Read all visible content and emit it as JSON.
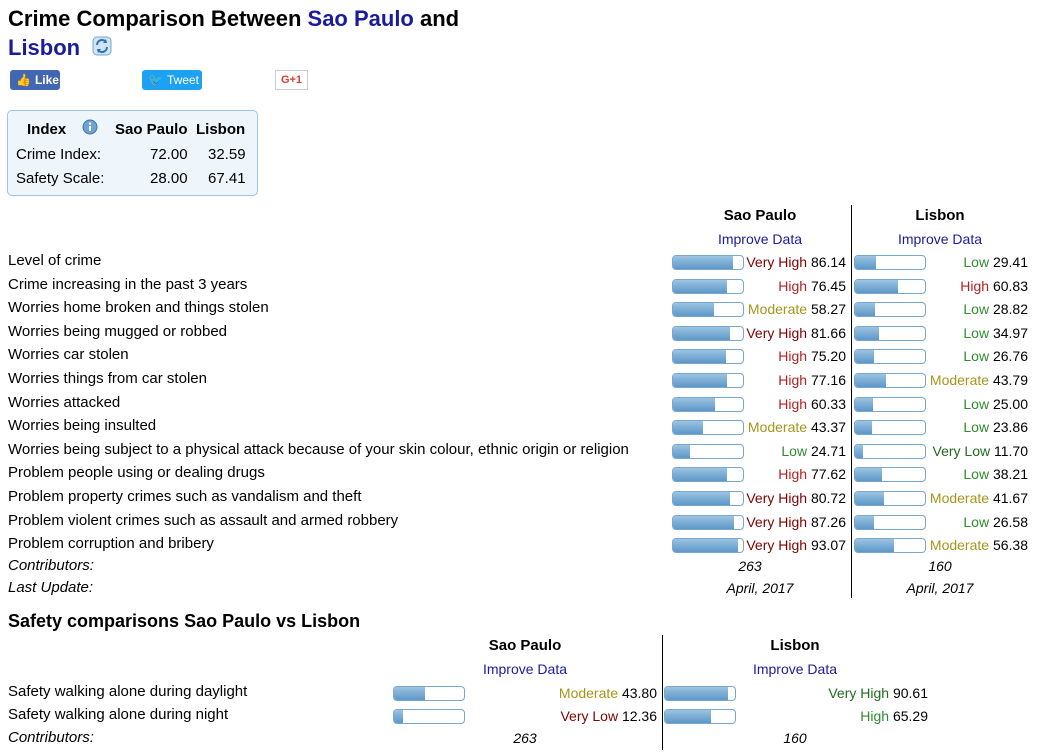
{
  "title": {
    "prefix": "Crime Comparison Between ",
    "city1": "Sao Paulo",
    "mid": " and",
    "city2": "Lisbon"
  },
  "social": {
    "like": "Like",
    "tweet": "Tweet",
    "gplus": "G+1"
  },
  "index_table": {
    "headers": [
      "Index",
      "Sao Paulo",
      "Lisbon"
    ],
    "rows": [
      {
        "label": "Crime Index:",
        "v1": "72.00",
        "v2": "32.59"
      },
      {
        "label": "Safety Scale:",
        "v1": "28.00",
        "v2": "67.41"
      }
    ]
  },
  "crime": {
    "city1": "Sao Paulo",
    "city2": "Lisbon",
    "improve": "Improve Data",
    "rows": [
      {
        "label": "Level of crime",
        "a_level": "Very High",
        "a_val": 86.14,
        "a_cls": "vhigh",
        "b_level": "Low",
        "b_val": 29.41,
        "b_cls": "low"
      },
      {
        "label": "Crime increasing in the past 3 years",
        "a_level": "High",
        "a_val": 76.45,
        "a_cls": "high",
        "b_level": "High",
        "b_val": 60.83,
        "b_cls": "high"
      },
      {
        "label": "Worries home broken and things stolen",
        "a_level": "Moderate",
        "a_val": 58.27,
        "a_cls": "mod",
        "b_level": "Low",
        "b_val": 28.82,
        "b_cls": "low"
      },
      {
        "label": "Worries being mugged or robbed",
        "a_level": "Very High",
        "a_val": 81.66,
        "a_cls": "vhigh",
        "b_level": "Low",
        "b_val": 34.97,
        "b_cls": "low"
      },
      {
        "label": "Worries car stolen",
        "a_level": "High",
        "a_val": 75.2,
        "a_cls": "high",
        "b_level": "Low",
        "b_val": 26.76,
        "b_cls": "low"
      },
      {
        "label": "Worries things from car stolen",
        "a_level": "High",
        "a_val": 77.16,
        "a_cls": "high",
        "b_level": "Moderate",
        "b_val": 43.79,
        "b_cls": "mod"
      },
      {
        "label": "Worries attacked",
        "a_level": "High",
        "a_val": 60.33,
        "a_cls": "high",
        "b_level": "Low",
        "b_val": 25.0,
        "b_cls": "low"
      },
      {
        "label": "Worries being insulted",
        "a_level": "Moderate",
        "a_val": 43.37,
        "a_cls": "mod",
        "b_level": "Low",
        "b_val": 23.86,
        "b_cls": "low"
      },
      {
        "label": "Worries being subject to a physical attack because of your skin colour, ethnic origin or religion",
        "a_level": "Low",
        "a_val": 24.71,
        "a_cls": "low",
        "b_level": "Very Low",
        "b_val": 11.7,
        "b_cls": "vlow"
      },
      {
        "label": "Problem people using or dealing drugs",
        "a_level": "High",
        "a_val": 77.62,
        "a_cls": "high",
        "b_level": "Low",
        "b_val": 38.21,
        "b_cls": "low"
      },
      {
        "label": "Problem property crimes such as vandalism and theft",
        "a_level": "Very High",
        "a_val": 80.72,
        "a_cls": "vhigh",
        "b_level": "Moderate",
        "b_val": 41.67,
        "b_cls": "mod"
      },
      {
        "label": "Problem violent crimes such as assault and armed robbery",
        "a_level": "Very High",
        "a_val": 87.26,
        "a_cls": "vhigh",
        "b_level": "Low",
        "b_val": 26.58,
        "b_cls": "low"
      },
      {
        "label": "Problem corruption and bribery",
        "a_level": "Very High",
        "a_val": 93.07,
        "a_cls": "vhigh",
        "b_level": "Moderate",
        "b_val": 56.38,
        "b_cls": "mod"
      }
    ],
    "contributors_label": "Contributors:",
    "contributors_a": "263",
    "contributors_b": "160",
    "update_label": "Last Update:",
    "update_a": "April, 2017",
    "update_b": "April, 2017"
  },
  "safety": {
    "title": "Safety comparisons Sao Paulo vs Lisbon",
    "city1": "Sao Paulo",
    "city2": "Lisbon",
    "improve": "Improve Data",
    "rows": [
      {
        "label": "Safety walking alone during daylight",
        "a_level": "Moderate",
        "a_val": 43.8,
        "a_cls": "mod",
        "b_level": "Very High",
        "b_val": 90.61,
        "b_cls": "vlow"
      },
      {
        "label": "Safety walking alone during night",
        "a_level": "Very Low",
        "a_val": 12.36,
        "a_cls": "vhigh",
        "b_level": "High",
        "b_val": 65.29,
        "b_cls": "low"
      }
    ],
    "contributors_label": "Contributors:",
    "contributors_a": "263",
    "contributors_b": "160"
  },
  "icons": {
    "refresh": "refresh-icon",
    "info": "info-icon",
    "like": "thumbs-up-icon",
    "tweet": "twitter-bird-icon"
  }
}
